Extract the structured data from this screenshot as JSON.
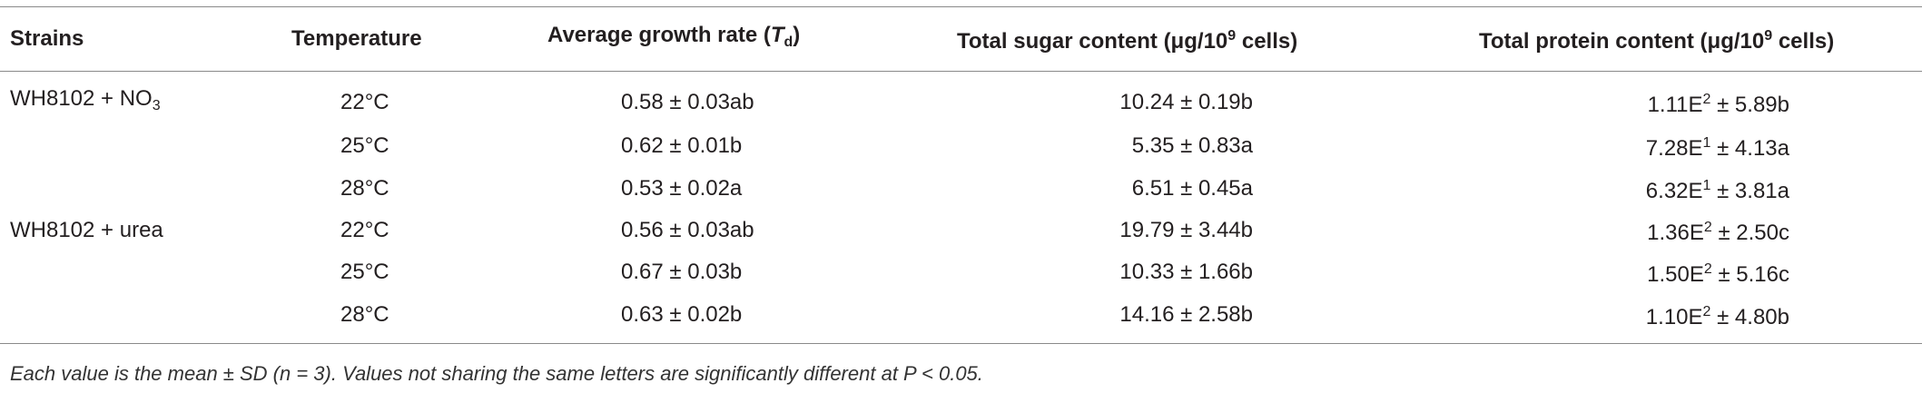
{
  "table": {
    "header": [
      [
        "Strains"
      ],
      [
        "Temperature"
      ],
      [
        "Average growth rate (",
        {
          "text": "T",
          "style": "italic"
        },
        {
          "text": "d",
          "style": "sub"
        },
        ")"
      ],
      [
        "Total sugar content (μg/10",
        {
          "text": "9",
          "style": "sup"
        },
        " cells)"
      ],
      [
        "Total protein content (μg/10",
        {
          "text": "9",
          "style": "sup"
        },
        " cells)"
      ]
    ],
    "rows": [
      [
        [
          "WH8102 + NO",
          {
            "text": "3",
            "style": "sub"
          }
        ],
        [
          "22°C"
        ],
        [
          "0.58 ± 0.03ab"
        ],
        [
          "10.24 ± 0.19b"
        ],
        [
          "1.11E",
          {
            "text": "2",
            "style": "sup"
          },
          " ± 5.89b"
        ]
      ],
      [
        null,
        [
          "25°C"
        ],
        [
          "0.62 ± 0.01b"
        ],
        [
          "5.35 ± 0.83a"
        ],
        [
          "7.28E",
          {
            "text": "1",
            "style": "sup"
          },
          " ± 4.13a"
        ]
      ],
      [
        null,
        [
          "28°C"
        ],
        [
          "0.53 ± 0.02a"
        ],
        [
          "6.51 ± 0.45a"
        ],
        [
          "6.32E",
          {
            "text": "1",
            "style": "sup"
          },
          " ± 3.81a"
        ]
      ],
      [
        [
          "WH8102 + urea"
        ],
        [
          "22°C"
        ],
        [
          "0.56 ± 0.03ab"
        ],
        [
          "19.79 ± 3.44b"
        ],
        [
          "1.36E",
          {
            "text": "2",
            "style": "sup"
          },
          " ± 2.50c"
        ]
      ],
      [
        null,
        [
          "25°C"
        ],
        [
          "0.67 ± 0.03b"
        ],
        [
          "10.33 ± 1.66b"
        ],
        [
          "1.50E",
          {
            "text": "2",
            "style": "sup"
          },
          " ± 5.16c"
        ]
      ],
      [
        null,
        [
          "28°C"
        ],
        [
          "0.63 ± 0.02b"
        ],
        [
          "14.16 ± 2.58b"
        ],
        [
          "1.10E",
          {
            "text": "2",
            "style": "sup"
          },
          " ± 4.80b"
        ]
      ]
    ],
    "footnote": "Each value is the mean ± SD (n = 3). Values not sharing the same letters are significantly different at P < 0.05."
  }
}
